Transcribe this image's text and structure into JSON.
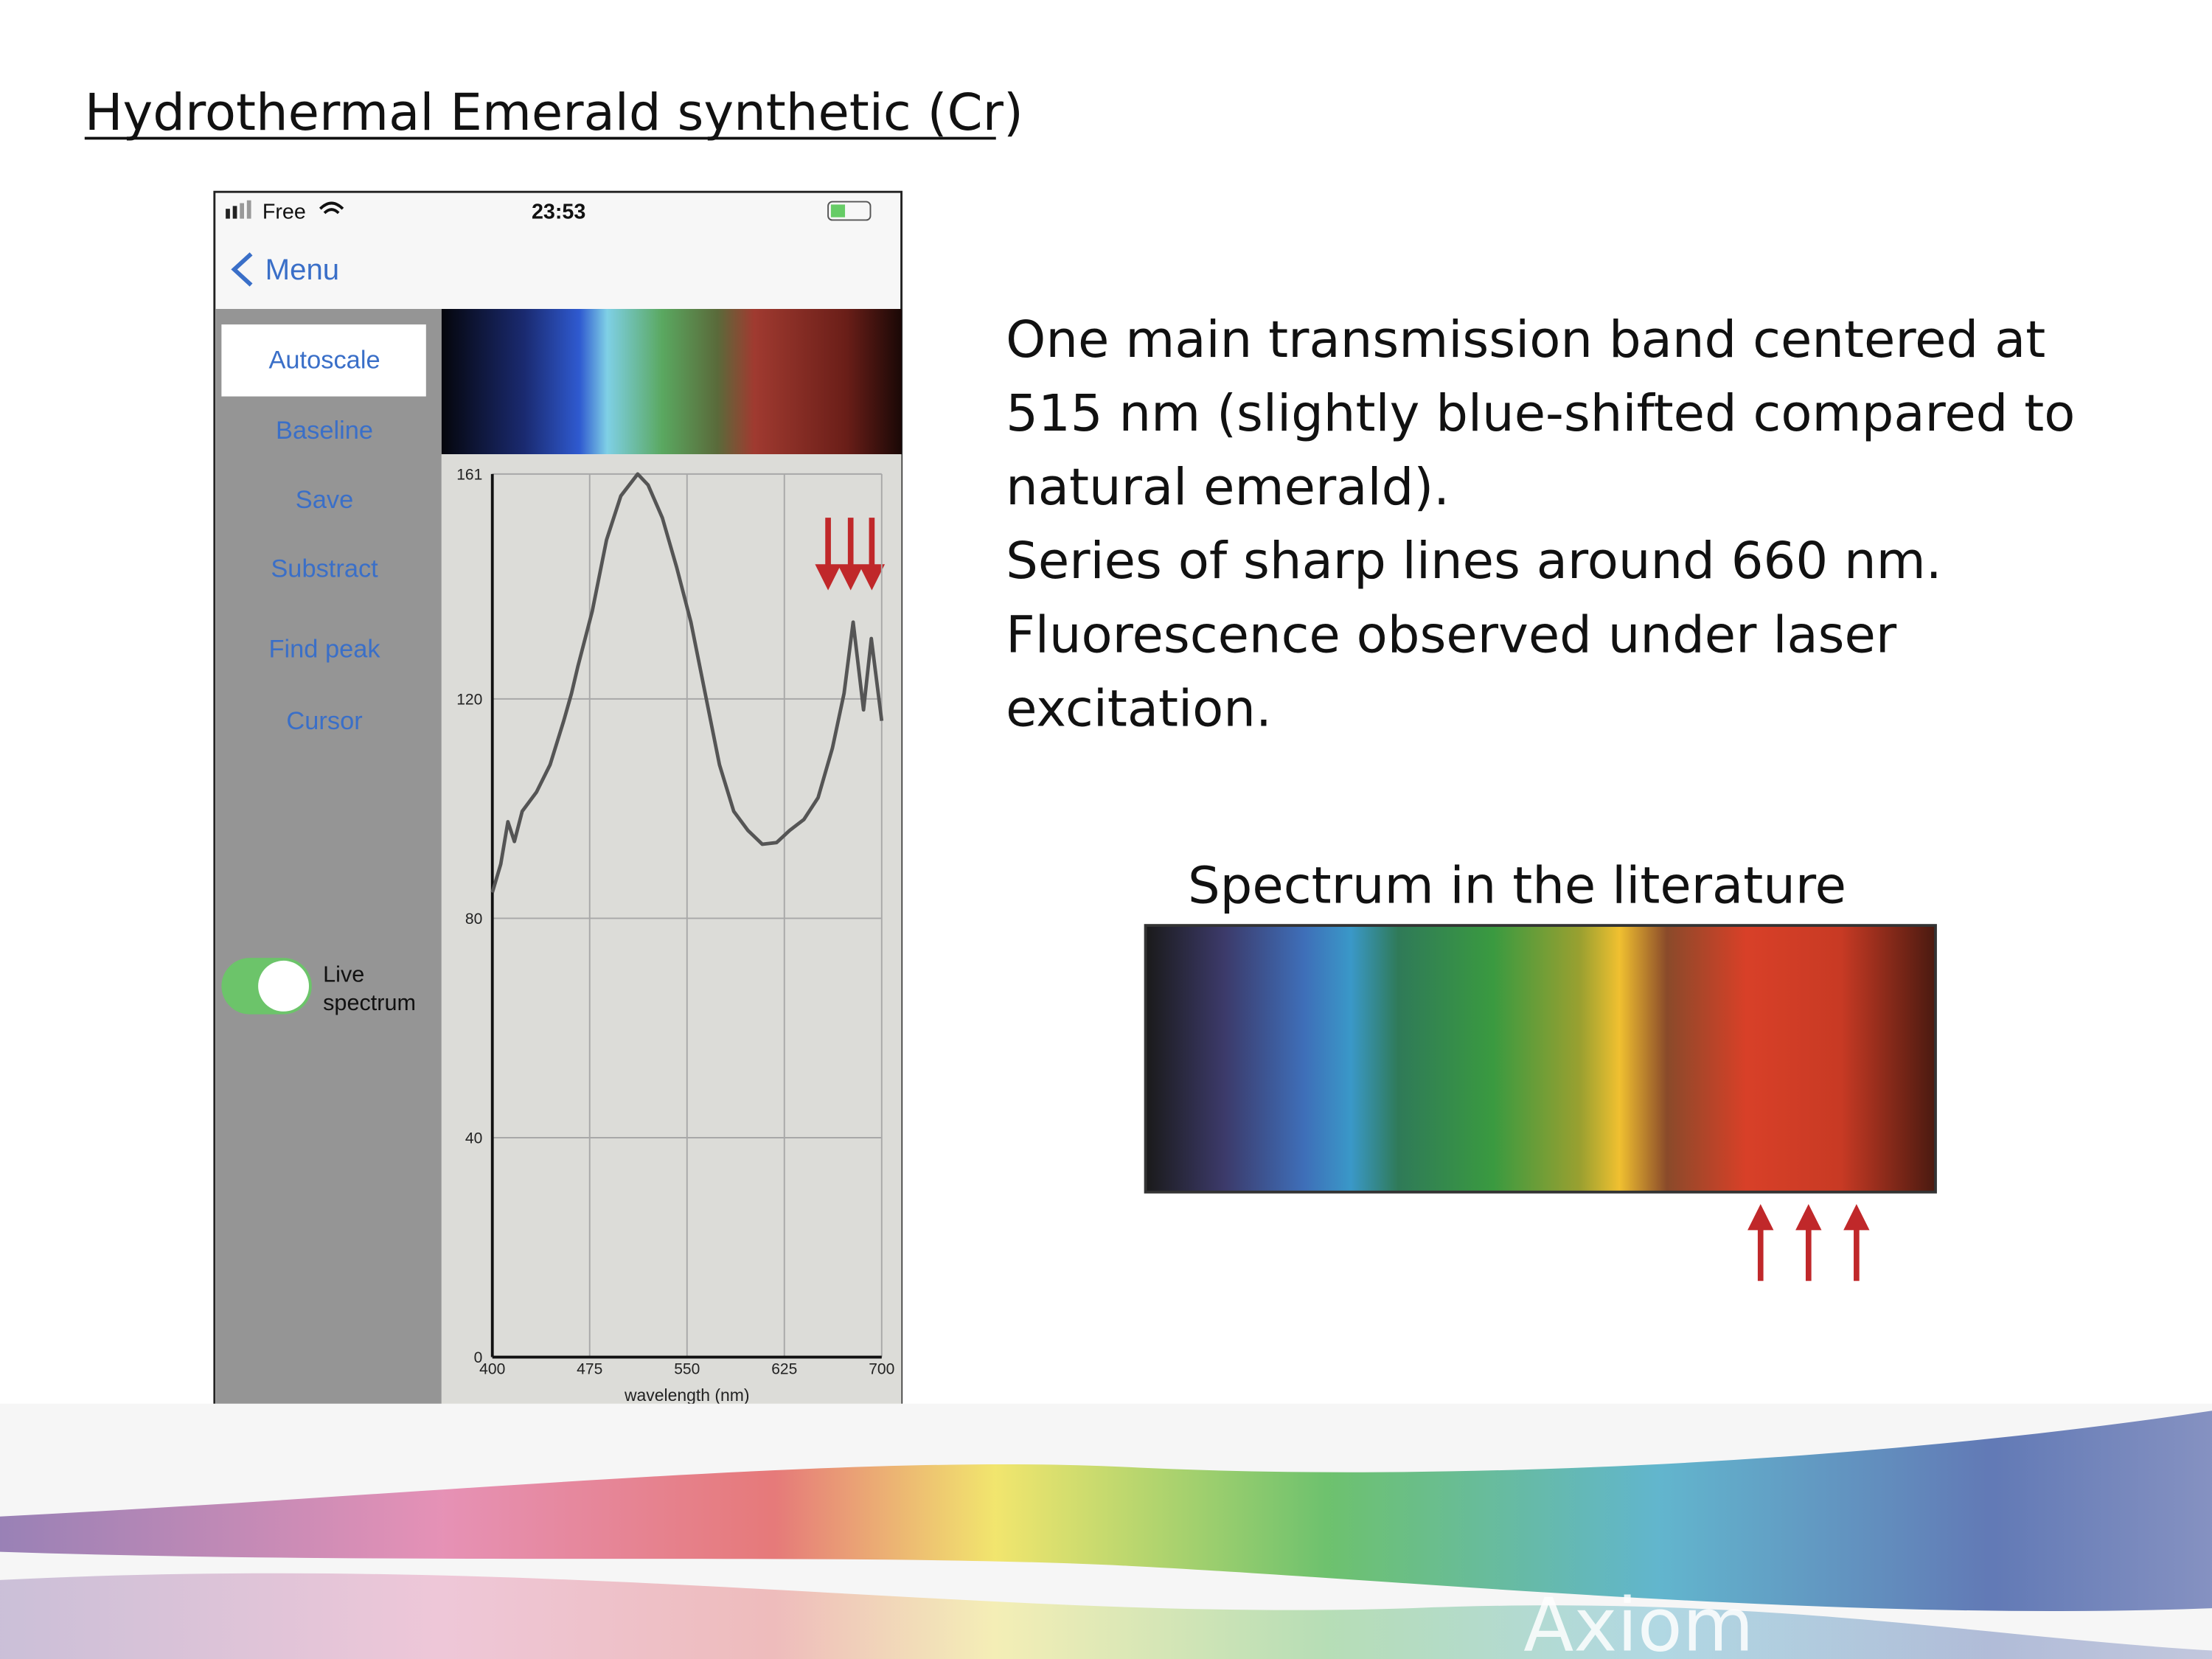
{
  "slide": {
    "title": "Hydrothermal Emerald synthetic (Cr)",
    "description_lines": [
      "One main transmission band centered at",
      "515 nm (slightly blue-shifted compared to",
      "natural emerald).",
      "Series of sharp lines around 660 nm.",
      "Fluorescence observed under laser",
      "excitation."
    ],
    "literature_caption": "Spectrum in the literature",
    "watermark": "Axiom"
  },
  "phone": {
    "carrier": "Free",
    "time": "23:53",
    "back": "Menu",
    "buttons": [
      "Autoscale",
      "Baseline",
      "Save",
      "Substract",
      "Find peak",
      "Cursor"
    ],
    "toggle_label": [
      "Live",
      "spectrum"
    ]
  },
  "chart_data": {
    "type": "line",
    "x_label": "wavelength (nm)",
    "x": [
      400,
      406.5,
      412,
      417,
      423,
      434,
      444.5,
      455,
      461,
      466,
      477,
      488,
      499,
      512,
      520,
      531,
      542,
      553,
      564,
      575,
      586,
      597,
      608,
      619,
      629,
      640,
      651,
      662,
      671,
      678,
      686,
      692,
      700
    ],
    "series": [
      {
        "color": "#555555",
        "values": [
          84.7,
          89.9,
          97.6,
          94,
          99.5,
          103,
          108,
          116,
          121,
          126,
          136,
          149,
          157,
          161,
          159,
          153,
          144,
          134,
          121,
          108,
          99.5,
          96,
          93.5,
          93.8,
          96,
          98,
          102,
          111,
          121,
          134,
          118,
          131,
          116
        ]
      }
    ],
    "xlim": [
      400,
      700
    ],
    "xticks": [
      400,
      475,
      550,
      625,
      700
    ],
    "ylim": [
      0,
      161
    ],
    "yticks": [
      0,
      40,
      80,
      120,
      161
    ],
    "grid": true
  }
}
